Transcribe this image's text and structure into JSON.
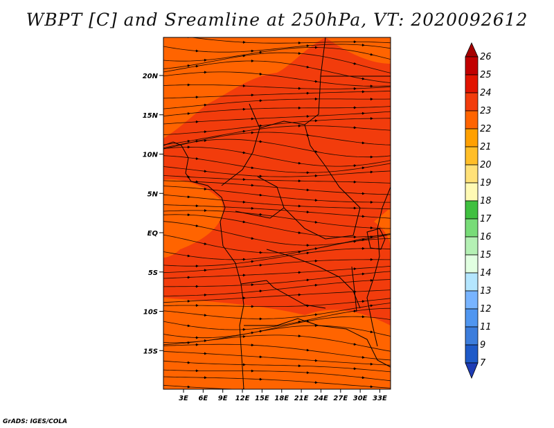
{
  "title": "WBPT [C] and Sreamline at 250hPa, VT: 2020092612",
  "credit": "GrADS: IGES/COLA",
  "map": {
    "background_color": "#f23c0c",
    "lat_ticks": [
      {
        "value": 20,
        "label": "20N"
      },
      {
        "value": 15,
        "label": "15N"
      },
      {
        "value": 10,
        "label": "10N"
      },
      {
        "value": 5,
        "label": "5N"
      },
      {
        "value": 0,
        "label": "EQ"
      },
      {
        "value": -5,
        "label": "5S"
      },
      {
        "value": -10,
        "label": "10S"
      },
      {
        "value": -15,
        "label": "15S"
      }
    ],
    "lon_ticks": [
      {
        "value": 3,
        "label": "3E"
      },
      {
        "value": 6,
        "label": "6E"
      },
      {
        "value": 9,
        "label": "9E"
      },
      {
        "value": 12,
        "label": "12E"
      },
      {
        "value": 15,
        "label": "15E"
      },
      {
        "value": 18,
        "label": "18E"
      },
      {
        "value": 21,
        "label": "21E"
      },
      {
        "value": 24,
        "label": "24E"
      },
      {
        "value": 27,
        "label": "27E"
      },
      {
        "value": 30,
        "label": "30E"
      },
      {
        "value": 33,
        "label": "33E"
      }
    ]
  },
  "colorbar": {
    "labels": [
      "26",
      "25",
      "24",
      "23",
      "22",
      "21",
      "20",
      "19",
      "18",
      "17",
      "16",
      "15",
      "14",
      "13",
      "12",
      "11",
      "9",
      "7"
    ],
    "colors": [
      "#a50000",
      "#c10000",
      "#e11400",
      "#f23c0c",
      "#ff6400",
      "#ffa000",
      "#ffbe28",
      "#ffe178",
      "#fffab4",
      "#40c040",
      "#78dc78",
      "#b4f0b4",
      "#e1ffe1",
      "#b4e6ff",
      "#78b4ff",
      "#5096f0",
      "#3c7ddc",
      "#1e5ac8",
      "#1e3cb4"
    ]
  }
}
